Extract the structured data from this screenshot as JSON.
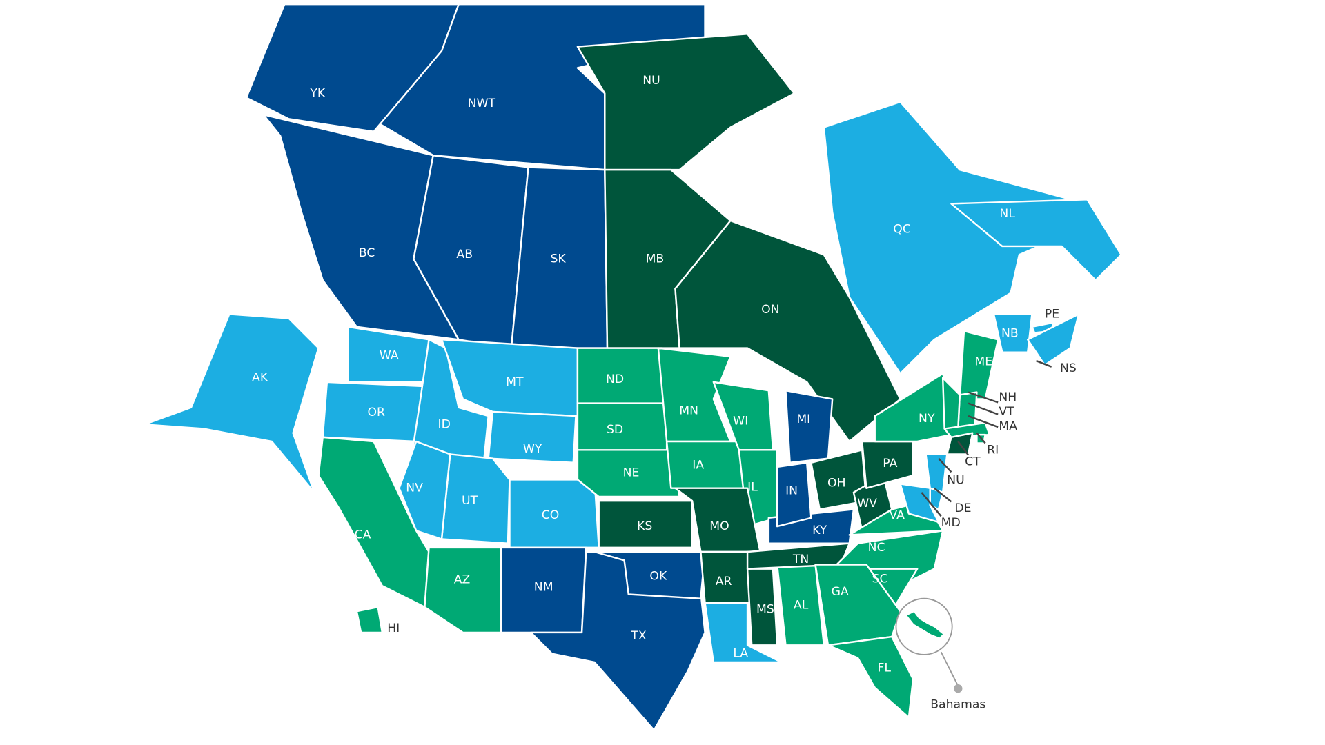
{
  "colors": {
    "dark_blue": "#004a8f",
    "light_blue": "#1caee2",
    "green": "#00a974",
    "dark_green": "#00553b",
    "label_dark": "#333333",
    "callout": "#999999"
  },
  "regions": [
    {
      "code": "NWT",
      "category": "dark_blue"
    },
    {
      "code": "YK",
      "category": "dark_blue"
    },
    {
      "code": "NU",
      "category": "dark_green"
    },
    {
      "code": "BC",
      "category": "dark_blue"
    },
    {
      "code": "AB",
      "category": "dark_blue"
    },
    {
      "code": "SK",
      "category": "dark_blue"
    },
    {
      "code": "MB",
      "category": "dark_green"
    },
    {
      "code": "ON",
      "category": "dark_green"
    },
    {
      "code": "QC",
      "category": "light_blue"
    },
    {
      "code": "NL",
      "category": "light_blue"
    },
    {
      "code": "NB",
      "category": "light_blue"
    },
    {
      "code": "PE",
      "category": "light_blue"
    },
    {
      "code": "NS",
      "category": "light_blue"
    },
    {
      "code": "AK",
      "category": "light_blue"
    },
    {
      "code": "WA",
      "category": "light_blue"
    },
    {
      "code": "OR",
      "category": "light_blue"
    },
    {
      "code": "ID",
      "category": "light_blue"
    },
    {
      "code": "MT",
      "category": "light_blue"
    },
    {
      "code": "WY",
      "category": "light_blue"
    },
    {
      "code": "CO",
      "category": "light_blue"
    },
    {
      "code": "UT",
      "category": "light_blue"
    },
    {
      "code": "NV",
      "category": "light_blue"
    },
    {
      "code": "CA",
      "category": "green"
    },
    {
      "code": "AZ",
      "category": "green"
    },
    {
      "code": "NM",
      "category": "dark_blue"
    },
    {
      "code": "TX",
      "category": "dark_blue"
    },
    {
      "code": "OK",
      "category": "dark_blue"
    },
    {
      "code": "KS",
      "category": "dark_green"
    },
    {
      "code": "NE",
      "category": "green"
    },
    {
      "code": "SD",
      "category": "green"
    },
    {
      "code": "ND",
      "category": "green"
    },
    {
      "code": "MN",
      "category": "green"
    },
    {
      "code": "IA",
      "category": "green"
    },
    {
      "code": "WI",
      "category": "green"
    },
    {
      "code": "IL",
      "category": "green"
    },
    {
      "code": "MO",
      "category": "dark_green"
    },
    {
      "code": "AR",
      "category": "dark_green"
    },
    {
      "code": "LA",
      "category": "light_blue"
    },
    {
      "code": "MS",
      "category": "dark_green"
    },
    {
      "code": "AL",
      "category": "green"
    },
    {
      "code": "TN",
      "category": "dark_green"
    },
    {
      "code": "KY",
      "category": "dark_blue"
    },
    {
      "code": "IN",
      "category": "dark_blue"
    },
    {
      "code": "MI",
      "category": "dark_blue"
    },
    {
      "code": "OH",
      "category": "dark_green"
    },
    {
      "code": "WV",
      "category": "dark_green"
    },
    {
      "code": "PA",
      "category": "dark_green"
    },
    {
      "code": "NY",
      "category": "green"
    },
    {
      "code": "VA",
      "category": "green"
    },
    {
      "code": "NC",
      "category": "green"
    },
    {
      "code": "SC",
      "category": "green"
    },
    {
      "code": "GA",
      "category": "green"
    },
    {
      "code": "FL",
      "category": "green"
    },
    {
      "code": "ME",
      "category": "green"
    },
    {
      "code": "NH",
      "category": "green"
    },
    {
      "code": "VT",
      "category": "green"
    },
    {
      "code": "MA",
      "category": "green"
    },
    {
      "code": "RI",
      "category": "green"
    },
    {
      "code": "CT",
      "category": "dark_green"
    },
    {
      "code": "NU",
      "category": "light_blue",
      "note_id": "NJ"
    },
    {
      "code": "DE",
      "category": "light_blue"
    },
    {
      "code": "MD",
      "category": "light_blue"
    },
    {
      "code": "HI",
      "category": "green"
    }
  ],
  "callout": {
    "label": "Bahamas",
    "category": "green"
  }
}
